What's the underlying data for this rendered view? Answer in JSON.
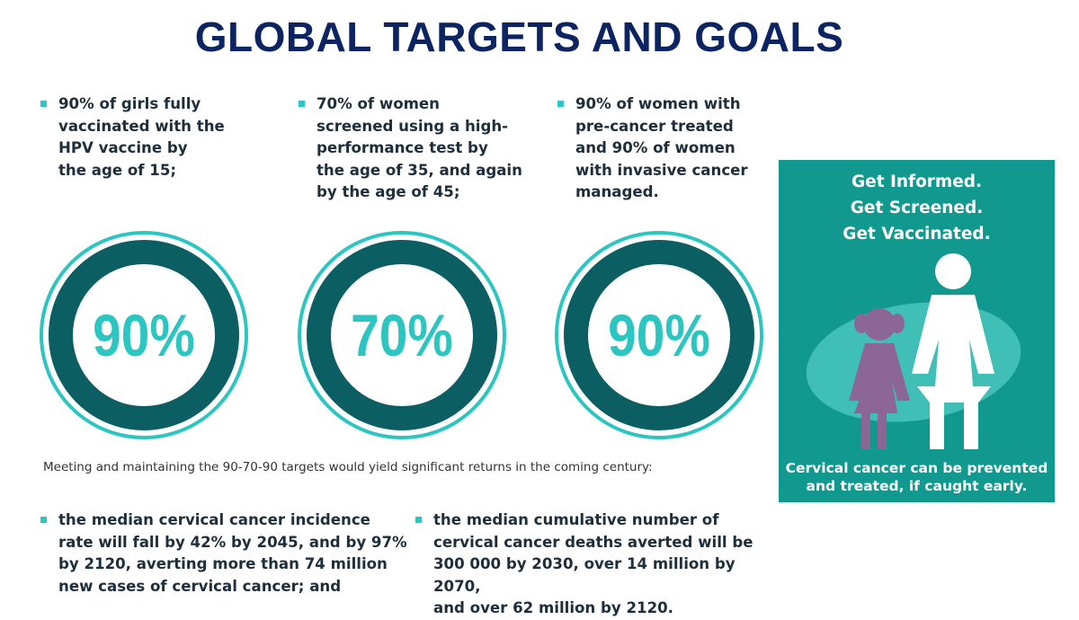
{
  "title": "GLOBAL TARGETS AND GOALS",
  "targets": [
    {
      "text": "90% of girls fully\nvaccinated with the\nHPV vaccine by\nthe age of 15;",
      "percent": "90%"
    },
    {
      "text": "70% of women\nscreened using a high-\nperformance test by\nthe age of 35, and again\nby the age of 45;",
      "percent": "70%"
    },
    {
      "text": "90% of women with\npre-cancer treated\nand 90% of women\nwith invasive cancer\nmanaged.",
      "percent": "90%"
    }
  ],
  "returns_note": "Meeting and maintaining the 90-70-90 targets would yield  significant returns in the coming century:",
  "returns": [
    "the median cervical cancer incidence\nrate will fall by 42% by 2045, and by 97%\nby 2120, averting more than 74 million\nnew cases of cervical cancer; and",
    "the median cumulative number of\ncervical cancer deaths averted will be\n300 000 by 2030, over 14 million by 2070,\nand over 62 million by 2120."
  ],
  "poster": {
    "heading": "Get Informed.\nGet Screened.\nGet Vaccinated.",
    "caption": "Cervical cancer can be prevented\nand treated, if caught early."
  },
  "colors": {
    "title": "#0c2461",
    "accent_teal": "#2cc6c2",
    "ring_dark": "#0b5f63",
    "poster_bg": "#12998f",
    "girl_figure": "#8c6796"
  },
  "icons": [
    "bullet-square-icon",
    "woman-figure-icon",
    "girl-figure-icon"
  ]
}
